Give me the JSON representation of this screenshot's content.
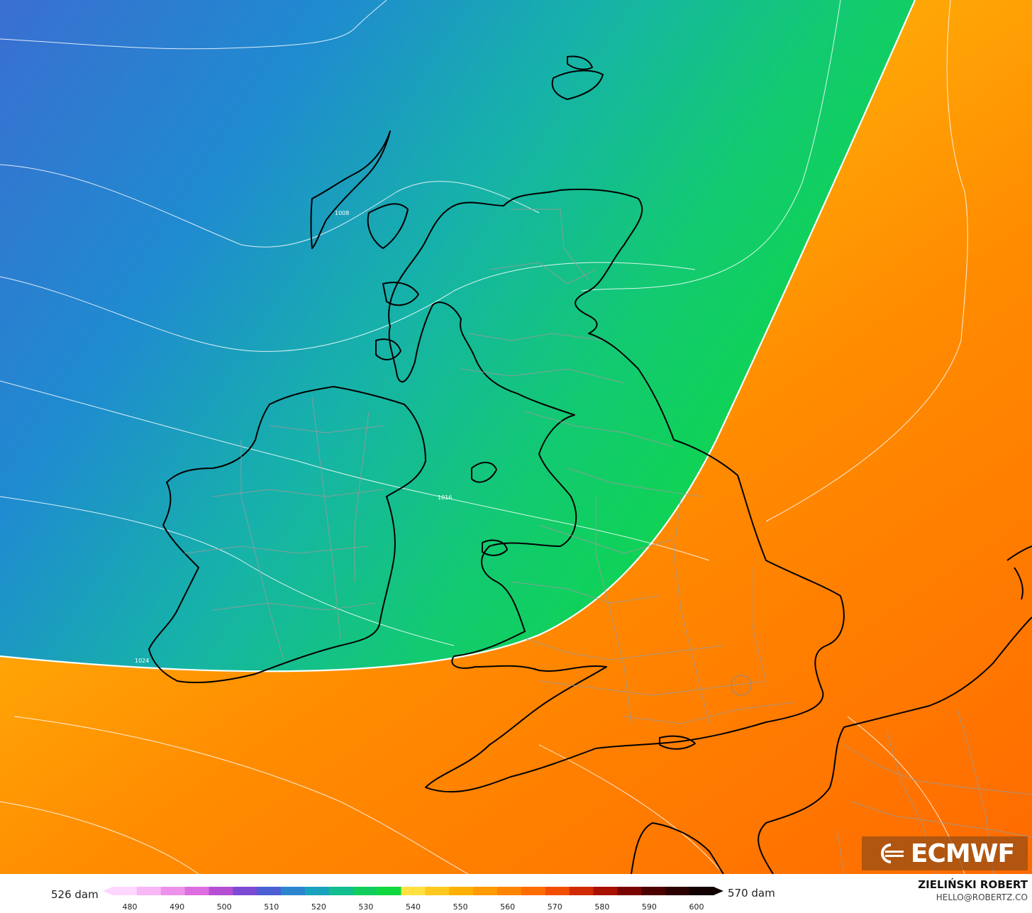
{
  "map": {
    "isobar_labels": [
      "1008",
      "1016",
      "1024"
    ],
    "background_colors": [
      "#3a6fd1",
      "#1f8bd0",
      "#16b3a8",
      "#13c973",
      "#0ed64a",
      "#ffd632",
      "#ffb20a",
      "#ff8c00",
      "#ff6a00"
    ]
  },
  "logo": {
    "text": "ECMWF",
    "icon": "ecmwf-logo-icon"
  },
  "legend": {
    "left_label": "526 dam",
    "right_label": "570 dam",
    "ticks": [
      "480",
      "490",
      "500",
      "510",
      "520",
      "530",
      "540",
      "550",
      "560",
      "570",
      "580",
      "590",
      "600"
    ],
    "colors": [
      "#ffd6ff",
      "#f7b8f5",
      "#ec92ea",
      "#dc6ee0",
      "#b54fd4",
      "#7d4ad4",
      "#4a5fd2",
      "#2c86cf",
      "#1aa3bd",
      "#12bd8f",
      "#10cd5c",
      "#0fd83e",
      "#ffe040",
      "#ffc81c",
      "#ffb000",
      "#ff9a00",
      "#ff8400",
      "#ff6c00",
      "#f24e00",
      "#d12a00",
      "#a81000",
      "#7a0500",
      "#4d0200",
      "#2a0000",
      "#120000"
    ]
  },
  "author": {
    "name": "ZIELIŃSKI ROBERT",
    "email": "HELLO@ROBERTZ.CO"
  }
}
